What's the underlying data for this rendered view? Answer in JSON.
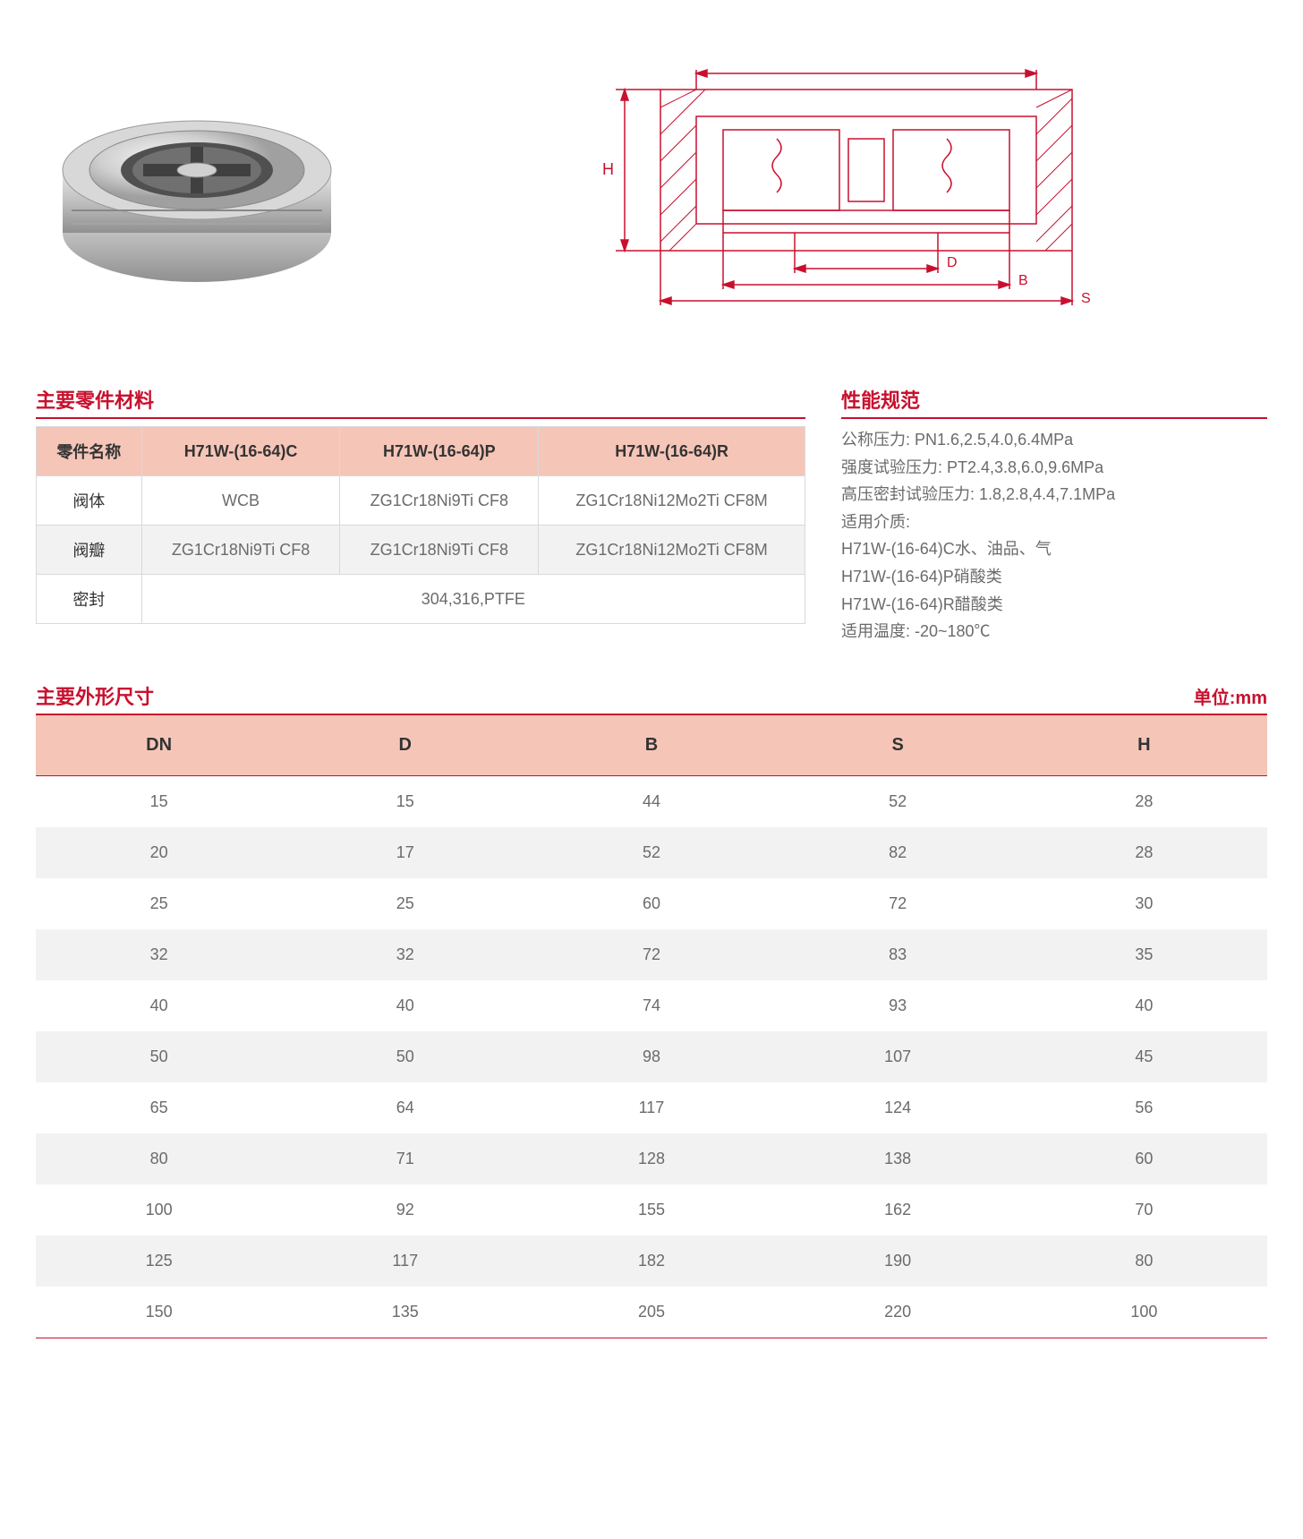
{
  "colors": {
    "accent": "#c8102e",
    "header_bg": "#f5c6b8",
    "row_alt": "#f2f2f2",
    "text_gray": "#6b6b6b",
    "border_gray": "#d9d9d9",
    "dark_table_text": "#333333"
  },
  "diagram": {
    "labels": {
      "H": "H",
      "D": "D",
      "B": "B",
      "S": "S"
    },
    "stroke_color": "#c8102e",
    "stroke_width": 1.5,
    "hatch_color": "#c8102e"
  },
  "materials": {
    "title": "主要零件材料",
    "columns": [
      "零件名称",
      "H71W-(16-64)C",
      "H71W-(16-64)P",
      "H71W-(16-64)R"
    ],
    "rows": [
      {
        "name": "阀体",
        "cells": [
          "WCB",
          "ZG1Cr18Ni9Ti CF8",
          "ZG1Cr18Ni12Mo2Ti CF8M"
        ]
      },
      {
        "name": "阀瓣",
        "cells": [
          "ZG1Cr18Ni9Ti CF8",
          "ZG1Cr18Ni9Ti CF8",
          "ZG1Cr18Ni12Mo2Ti CF8M"
        ]
      },
      {
        "name": "密封",
        "cells_merged": "304,316,PTFE"
      }
    ]
  },
  "specs": {
    "title": "性能规范",
    "lines": [
      "公称压力: PN1.6,2.5,4.0,6.4MPa",
      "强度试验压力: PT2.4,3.8,6.0,9.6MPa",
      "高压密封试验压力: 1.8,2.8,4.4,7.1MPa",
      "适用介质:",
      "H71W-(16-64)C水、油品、气",
      "H71W-(16-64)P硝酸类",
      "H71W-(16-64)R醋酸类",
      "适用温度: -20~180℃"
    ]
  },
  "dimensions": {
    "title": "主要外形尺寸",
    "unit": "单位:mm",
    "columns": [
      "DN",
      "D",
      "B",
      "S",
      "H"
    ],
    "rows": [
      [
        "15",
        "15",
        "44",
        "52",
        "28"
      ],
      [
        "20",
        "17",
        "52",
        "82",
        "28"
      ],
      [
        "25",
        "25",
        "60",
        "72",
        "30"
      ],
      [
        "32",
        "32",
        "72",
        "83",
        "35"
      ],
      [
        "40",
        "40",
        "74",
        "93",
        "40"
      ],
      [
        "50",
        "50",
        "98",
        "107",
        "45"
      ],
      [
        "65",
        "64",
        "117",
        "124",
        "56"
      ],
      [
        "80",
        "71",
        "128",
        "138",
        "60"
      ],
      [
        "100",
        "92",
        "155",
        "162",
        "70"
      ],
      [
        "125",
        "117",
        "182",
        "190",
        "80"
      ],
      [
        "150",
        "135",
        "205",
        "220",
        "100"
      ]
    ]
  }
}
